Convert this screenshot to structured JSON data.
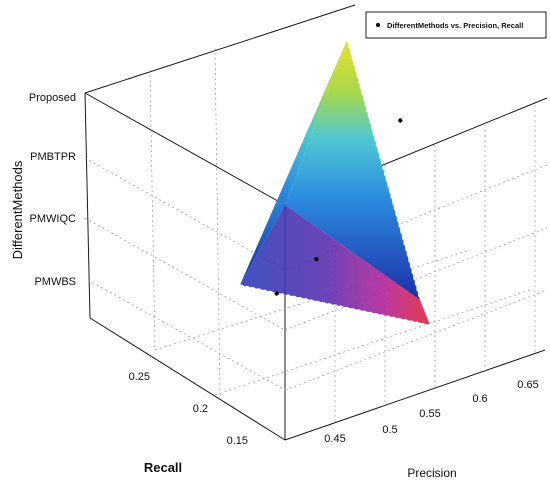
{
  "chart_data": {
    "type": "surface-3d",
    "xlabel": "Recall",
    "ylabel": "Precision",
    "zlabel": "DifferentMethods",
    "legend": {
      "label": "DifferentMethods vs. Precision, Recall",
      "placement": "top-right"
    },
    "grid": true,
    "colormap": [
      "#1f2fb0",
      "#2563d8",
      "#2fa6e6",
      "#5fd7c8",
      "#9bd64a",
      "#e4e02a",
      "#f5b21f",
      "#e03a3a",
      "#b31f8f"
    ],
    "xticks": [
      "0.15",
      "0.2",
      "0.25"
    ],
    "yticks": [
      "0.45",
      "0.5",
      "0.55",
      "0.6",
      "0.65"
    ],
    "zticks": [
      "PMWBS",
      "PMWIQC",
      "PMBTPR",
      "Proposed"
    ],
    "points": [
      {
        "method": "PMWBS",
        "precision": 0.58,
        "recall": 0.27,
        "level": 1
      },
      {
        "method": "PMWIQC",
        "precision": 0.66,
        "recall": 0.14,
        "level": 2
      },
      {
        "method": "PMBTPR",
        "precision": 0.52,
        "recall": 0.19,
        "level": 3
      },
      {
        "method": "Proposed",
        "precision": 0.62,
        "recall": 0.22,
        "level": 4
      }
    ]
  }
}
